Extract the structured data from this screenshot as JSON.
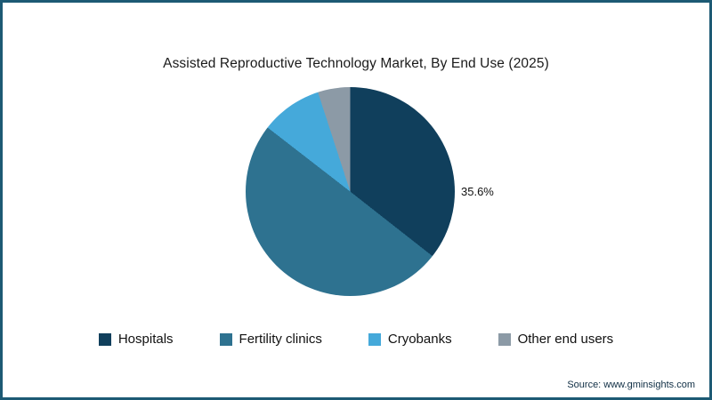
{
  "title": "Assisted Reproductive Technology Market, By End Use (2025)",
  "source": "Source: www.gminsights.com",
  "chart_data": {
    "type": "pie",
    "title": "Assisted Reproductive Technology Market, By End Use (2025)",
    "categories": [
      "Hospitals",
      "Fertility clinics",
      "Cryobanks",
      "Other end users"
    ],
    "values": [
      35.6,
      49.9,
      9.5,
      5.0
    ],
    "colors": [
      "#103f5c",
      "#2e7290",
      "#45a9da",
      "#8c9aa6"
    ],
    "start_angle_deg": 0,
    "direction": "clockwise",
    "legend_position": "bottom",
    "annotation": {
      "text": "35.6%",
      "slice": "Hospitals",
      "position": "right-of-pie"
    }
  }
}
